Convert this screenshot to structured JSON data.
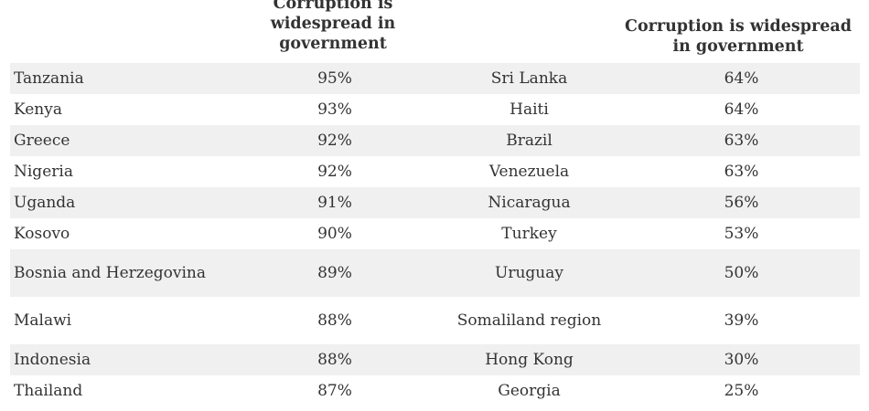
{
  "chart_data": {
    "type": "table",
    "columns": [
      "",
      "Corruption is widespread in government",
      "",
      "Corruption is widespread in government"
    ],
    "header_left": "Corruption is widespread in government",
    "header_right": "Corruption is widespread in government",
    "rows": [
      {
        "country_left": "Tanzania",
        "value_left": "95%",
        "country_right": "Sri Lanka",
        "value_right": "64%"
      },
      {
        "country_left": "Kenya",
        "value_left": "93%",
        "country_right": "Haiti",
        "value_right": "64%"
      },
      {
        "country_left": "Greece",
        "value_left": "92%",
        "country_right": "Brazil",
        "value_right": "63%"
      },
      {
        "country_left": "Nigeria",
        "value_left": "92%",
        "country_right": "Venezuela",
        "value_right": "63%"
      },
      {
        "country_left": "Uganda",
        "value_left": "91%",
        "country_right": "Nicaragua",
        "value_right": "56%"
      },
      {
        "country_left": "Kosovo",
        "value_left": "90%",
        "country_right": "Turkey",
        "value_right": "53%"
      },
      {
        "country_left": "Bosnia and Herzegovina",
        "value_left": "89%",
        "country_right": "Uruguay",
        "value_right": "50%"
      },
      {
        "country_left": "Malawi",
        "value_left": "88%",
        "country_right": "Somaliland region",
        "value_right": "39%"
      },
      {
        "country_left": "Indonesia",
        "value_left": "88%",
        "country_right": "Hong Kong",
        "value_right": "30%"
      },
      {
        "country_left": "Thailand",
        "value_left": "87%",
        "country_right": "Georgia",
        "value_right": "25%"
      }
    ]
  },
  "colors": {
    "row_shade": "#f0f0f0",
    "text": "#333333",
    "background": "#ffffff"
  }
}
